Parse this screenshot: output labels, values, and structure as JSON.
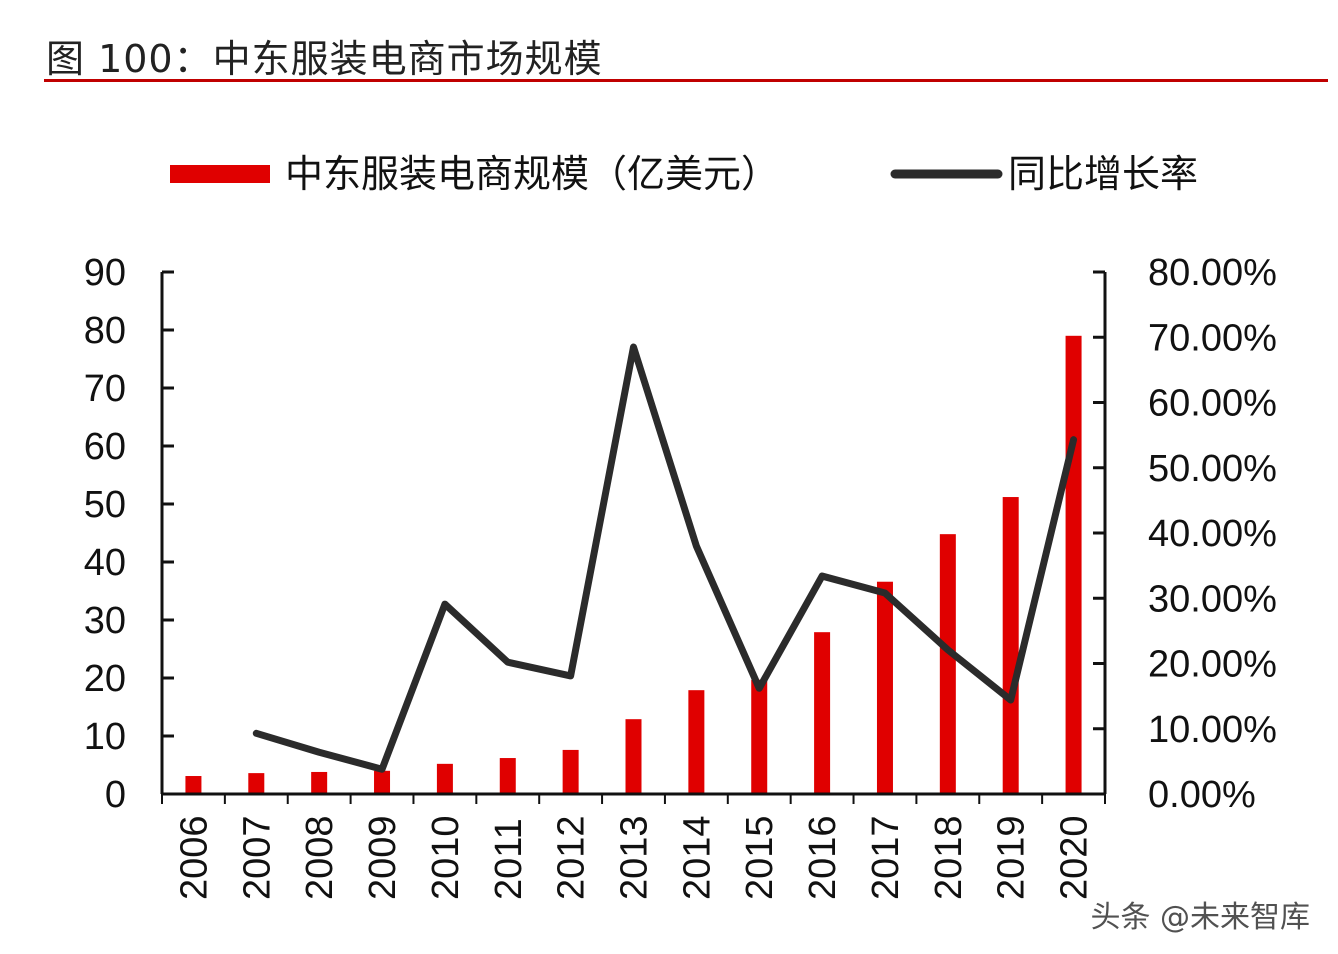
{
  "title": "图 100：中东服装电商市场规模",
  "watermark": "头条 @未来智库",
  "chart_data": {
    "type": "bar+line",
    "categories": [
      "2006",
      "2007",
      "2008",
      "2009",
      "2010",
      "2011",
      "2012",
      "2013",
      "2014",
      "2015",
      "2016",
      "2017",
      "2018",
      "2019",
      "2020"
    ],
    "series": [
      {
        "name": "中东服装电商规模（亿美元）",
        "type": "bar",
        "axis": "left",
        "color": "#e00000",
        "values": [
          3.1,
          3.6,
          3.8,
          4.0,
          5.2,
          6.2,
          7.6,
          12.9,
          17.9,
          19.7,
          27.9,
          36.6,
          44.8,
          51.2,
          79.0
        ]
      },
      {
        "name": "同比增长率",
        "type": "line",
        "axis": "right",
        "color": "#2b2b2b",
        "values": [
          null,
          9.3,
          6.4,
          3.8,
          29.1,
          20.2,
          18.1,
          68.5,
          38.0,
          16.2,
          33.4,
          30.8,
          22.1,
          14.4,
          54.3
        ]
      }
    ],
    "left_axis": {
      "ylim": [
        0,
        90
      ],
      "ticks": [
        "0",
        "10",
        "20",
        "30",
        "40",
        "50",
        "60",
        "70",
        "80",
        "90"
      ]
    },
    "right_axis": {
      "ylim": [
        0,
        80
      ],
      "ticks": [
        "0.00%",
        "10.00%",
        "20.00%",
        "30.00%",
        "40.00%",
        "50.00%",
        "60.00%",
        "70.00%",
        "80.00%"
      ]
    },
    "legend": {
      "placement": "top",
      "entries": [
        "中东服装电商规模（亿美元）",
        "同比增长率"
      ]
    },
    "grid": false
  }
}
